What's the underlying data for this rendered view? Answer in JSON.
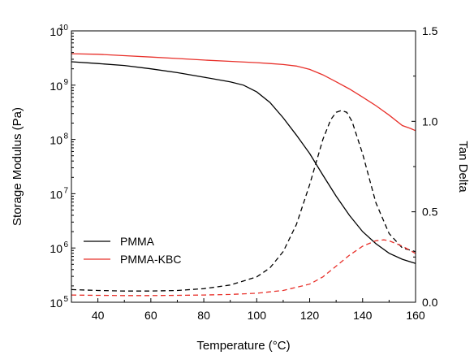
{
  "chart_data": {
    "type": "line",
    "xlabel": "Temperature (°C)",
    "ylabel_left": "Storage Modulus (Pa)",
    "ylabel_right": "Tan Delta",
    "xlim": [
      30,
      160
    ],
    "x_ticks": [
      40,
      60,
      80,
      100,
      120,
      140,
      160
    ],
    "y_left_scale": "log",
    "y_left_lim": [
      100000,
      10000000000
    ],
    "y_left_ticks": [
      {
        "base": "10",
        "exp": "5"
      },
      {
        "base": "10",
        "exp": "6"
      },
      {
        "base": "10",
        "exp": "7"
      },
      {
        "base": "10",
        "exp": "8"
      },
      {
        "base": "10",
        "exp": "9"
      },
      {
        "base": "10",
        "exp": "10"
      }
    ],
    "y_right_lim": [
      0.0,
      1.5
    ],
    "y_right_ticks": [
      "0.0",
      "0.5",
      "1.0",
      "1.5"
    ],
    "grid": false,
    "legend_position": "bottom-left",
    "series": [
      {
        "name": "PMMA",
        "color": "#000000",
        "dash": "solid",
        "axis": "left",
        "x": [
          30,
          40,
          50,
          60,
          70,
          80,
          90,
          95,
          100,
          105,
          110,
          115,
          120,
          125,
          130,
          135,
          140,
          145,
          150,
          155,
          160
        ],
        "y": [
          2700000000,
          2500000000,
          2300000000,
          2000000000,
          1700000000,
          1400000000,
          1150000000,
          1000000000,
          750000000,
          480000000,
          250000000,
          120000000,
          55000000,
          22000000,
          9000000,
          4000000,
          2000000,
          1200000,
          800000,
          620000,
          520000
        ]
      },
      {
        "name": "PMMA-KBC",
        "color": "#e8302a",
        "dash": "solid",
        "axis": "left",
        "x": [
          30,
          40,
          50,
          60,
          70,
          80,
          90,
          100,
          105,
          110,
          115,
          120,
          125,
          130,
          135,
          140,
          145,
          150,
          155,
          158,
          160
        ],
        "y": [
          3800000000,
          3700000000,
          3500000000,
          3300000000,
          3100000000,
          2900000000,
          2750000000,
          2600000000,
          2500000000,
          2400000000,
          2250000000,
          1950000000,
          1550000000,
          1150000000,
          850000000,
          600000000,
          420000000,
          280000000,
          180000000,
          160000000,
          145000000
        ]
      },
      {
        "name": "",
        "color": "#000000",
        "dash": "dashed",
        "axis": "right",
        "x": [
          30,
          40,
          50,
          60,
          70,
          80,
          90,
          100,
          105,
          110,
          115,
          120,
          125,
          128,
          130,
          132,
          134,
          136,
          140,
          145,
          150,
          155,
          160
        ],
        "y": [
          0.07,
          0.065,
          0.062,
          0.062,
          0.065,
          0.075,
          0.095,
          0.14,
          0.19,
          0.28,
          0.43,
          0.65,
          0.9,
          1.01,
          1.05,
          1.06,
          1.05,
          1.0,
          0.82,
          0.55,
          0.38,
          0.3,
          0.28
        ]
      },
      {
        "name": "",
        "color": "#e8302a",
        "dash": "dashed",
        "axis": "right",
        "x": [
          30,
          40,
          50,
          60,
          70,
          80,
          90,
          100,
          110,
          120,
          125,
          130,
          135,
          140,
          145,
          148,
          150,
          155,
          160
        ],
        "y": [
          0.04,
          0.038,
          0.037,
          0.037,
          0.038,
          0.04,
          0.043,
          0.05,
          0.065,
          0.1,
          0.14,
          0.2,
          0.26,
          0.31,
          0.34,
          0.345,
          0.34,
          0.31,
          0.27
        ]
      }
    ]
  }
}
